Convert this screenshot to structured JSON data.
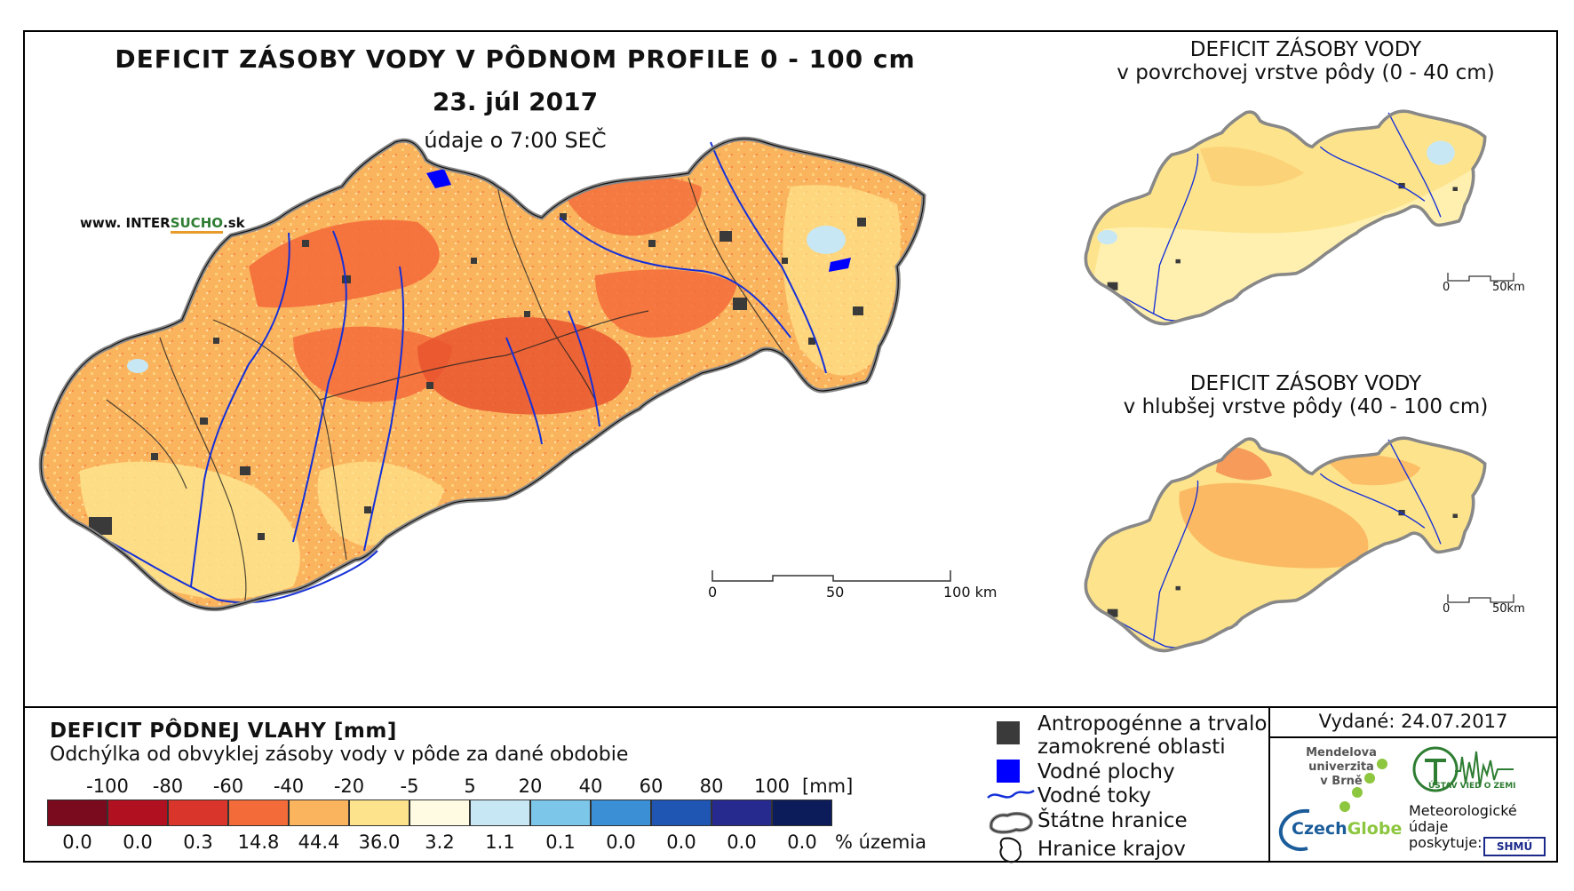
{
  "main_title": "DEFICIT ZÁSOBY VODY V PÔDNOM PROFILE 0 - 100 cm",
  "date": "23. júl 2017",
  "time_note": "údaje o 7:00 SEČ",
  "website": {
    "prefix": "www. INTER",
    "highlight": "SUCHO",
    "suffix": ".sk"
  },
  "top_inset": {
    "title_line1": "DEFICIT ZÁSOBY VODY",
    "title_line2": "v povrchovej vrstve pôdy (0 - 40 cm)",
    "scale_start": "0",
    "scale_end": "50km"
  },
  "bottom_inset": {
    "title_line1": "DEFICIT ZÁSOBY VODY",
    "title_line2": "v hlubšej vrstve pôdy (40 - 100 cm)",
    "scale_start": "0",
    "scale_end": "50km"
  },
  "main_scale": {
    "labels": [
      "0",
      "50",
      "100 km"
    ]
  },
  "legend": {
    "title": "DEFICIT PÔDNEJ VLAHY [mm]",
    "subtitle": "Odchýlka od obvyklej zásoby vody v pôde za dané obdobie",
    "unit": "[mm]",
    "percent_label": "% územia",
    "class_bounds": [
      "-100",
      "-80",
      "-60",
      "-40",
      "-20",
      "-5",
      "5",
      "20",
      "40",
      "60",
      "80",
      "100"
    ],
    "colors": [
      "#7a0a1e",
      "#b0101f",
      "#d9352a",
      "#f46b3a",
      "#fbb45e",
      "#fde48c",
      "#fffbe2",
      "#c7e7f5",
      "#7cc6ea",
      "#3b8fd4",
      "#1f55b3",
      "#262a8f",
      "#0c1c5a"
    ],
    "percentages": [
      "0.0",
      "0.0",
      "0.3",
      "14.8",
      "44.4",
      "36.0",
      "3.2",
      "1.1",
      "0.1",
      "0.0",
      "0.0",
      "0.0",
      "0.0"
    ]
  },
  "key": {
    "urban_line1": "Antropogénne a trvalo",
    "urban_line2": "zamokrené oblasti",
    "water_bodies": "Vodné plochy",
    "rivers": "Vodné toky",
    "state_border": "Štátne hranice",
    "regions": "Hranice krajov"
  },
  "issued": "Vydané: 24.07.2017",
  "logos": {
    "mendel_line1": "Mendelova",
    "mendel_line2": "univerzita",
    "mendel_line3": "v Brně",
    "czechglobe_a": "Czech",
    "czechglobe_b": "Globe",
    "ustav": "ÚSTAV VIED O ZEMI",
    "meteo_line1": "Meteorologické",
    "meteo_line2": "údaje",
    "meteo_line3": "poskytuje:",
    "shmu": "SHMÚ"
  }
}
